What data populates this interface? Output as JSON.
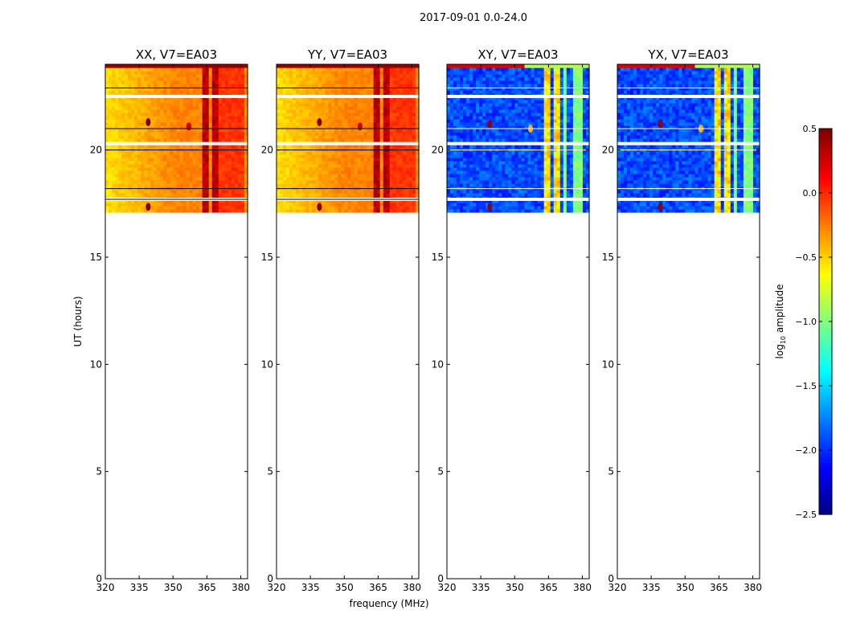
{
  "chart_data": {
    "type": "heatmap",
    "title": "2017-09-01 0.0-24.0",
    "xlabel": "frequency (MHz)",
    "ylabel": "UT (hours)",
    "xlim": [
      320,
      383
    ],
    "ylim": [
      0,
      24
    ],
    "xticks": [
      320,
      335,
      350,
      365,
      380
    ],
    "yticks": [
      0,
      5,
      10,
      15,
      20
    ],
    "data_ut_range": [
      17.1,
      24.0
    ],
    "gap_bands_ut": [
      22.5,
      20.3,
      17.7
    ],
    "panels": [
      {
        "title": "XX, V7=EA03",
        "kind": "parallel"
      },
      {
        "title": "YY, V7=EA03",
        "kind": "parallel"
      },
      {
        "title": "XY, V7=EA03",
        "kind": "cross"
      },
      {
        "title": "YX, V7=EA03",
        "kind": "cross"
      }
    ],
    "colorbar": {
      "label_main": "log",
      "label_sub": "10",
      "label_rest": " amplitude",
      "range": [
        -2.5,
        0.5
      ],
      "ticks": [
        0.5,
        0.0,
        -0.5,
        -1.0,
        -1.5,
        -2.0,
        -2.5
      ],
      "tick_labels": [
        "0.5",
        "0.0",
        "−0.5",
        "−1.0",
        "−1.5",
        "−2.0",
        "−2.5"
      ],
      "cmap": "jet"
    }
  }
}
